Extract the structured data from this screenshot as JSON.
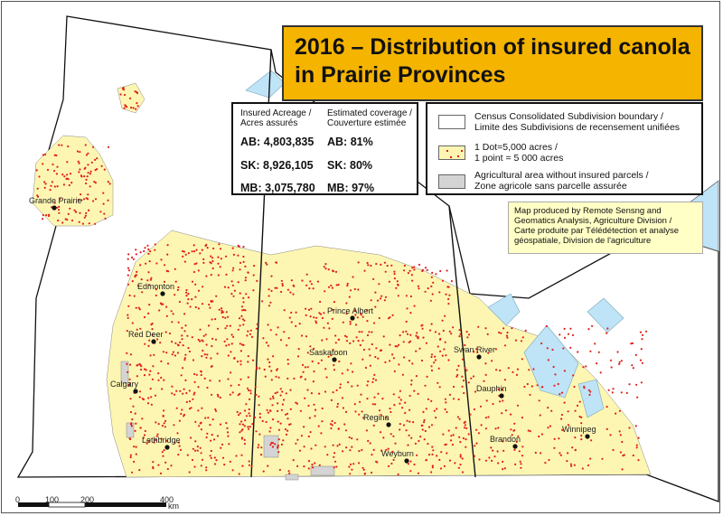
{
  "title": "2016 – Distribution of insured canola in Prairie Provinces",
  "stats": {
    "acreage_header": [
      "Insured Acreage /",
      "Acres assurés"
    ],
    "coverage_header": [
      "Estimated coverage /",
      "Couverture estimée"
    ],
    "rows": [
      {
        "acreage": "AB: 4,803,835",
        "coverage": "AB: 81%"
      },
      {
        "acreage": "SK: 8,926,105",
        "coverage": "SK: 80%"
      },
      {
        "acreage": "MB: 3,075,780",
        "coverage": "MB: 97%"
      }
    ]
  },
  "legend": {
    "items": [
      {
        "lines": [
          "Census Consolidated Subdivision boundary /",
          "Limite des Subdivisions de recensement unifiées"
        ],
        "color": "#ffffff"
      },
      {
        "lines": [
          "1 Dot=5,000 acres /",
          "1 point = 5 000 acres"
        ],
        "color": "#fdf6b2",
        "dot_color": "#e0201a"
      },
      {
        "lines": [
          "Agricultural area without insured parcels /",
          "Zone agricole sans parcelle assurée"
        ],
        "color": "#d4d4d4"
      }
    ]
  },
  "credit": [
    "Map produced by Remote Sensng and",
    "Geomatics Analysis, Agriculture Division  /",
    "Carte produite par Télédétection et analyse",
    "géospatiale, Division de l'agriculture"
  ],
  "cities": [
    "Grande Prairie",
    "Edmonton",
    "Red Deer",
    "Calgary",
    "Lethbridge",
    "Prince Albert",
    "Saskatoon",
    "Regina",
    "Weyburn",
    "Swan River",
    "Dauphin",
    "Brandon",
    "Winnipeg"
  ],
  "scale": {
    "labels": [
      "0",
      "100",
      "200",
      "400"
    ],
    "unit": "km"
  },
  "colors": {
    "farmland": "#fdf6b2",
    "dots": "#e0201a",
    "water": "#bfe3f7",
    "boundary": "#111111",
    "title_bg": "#f5b400"
  }
}
